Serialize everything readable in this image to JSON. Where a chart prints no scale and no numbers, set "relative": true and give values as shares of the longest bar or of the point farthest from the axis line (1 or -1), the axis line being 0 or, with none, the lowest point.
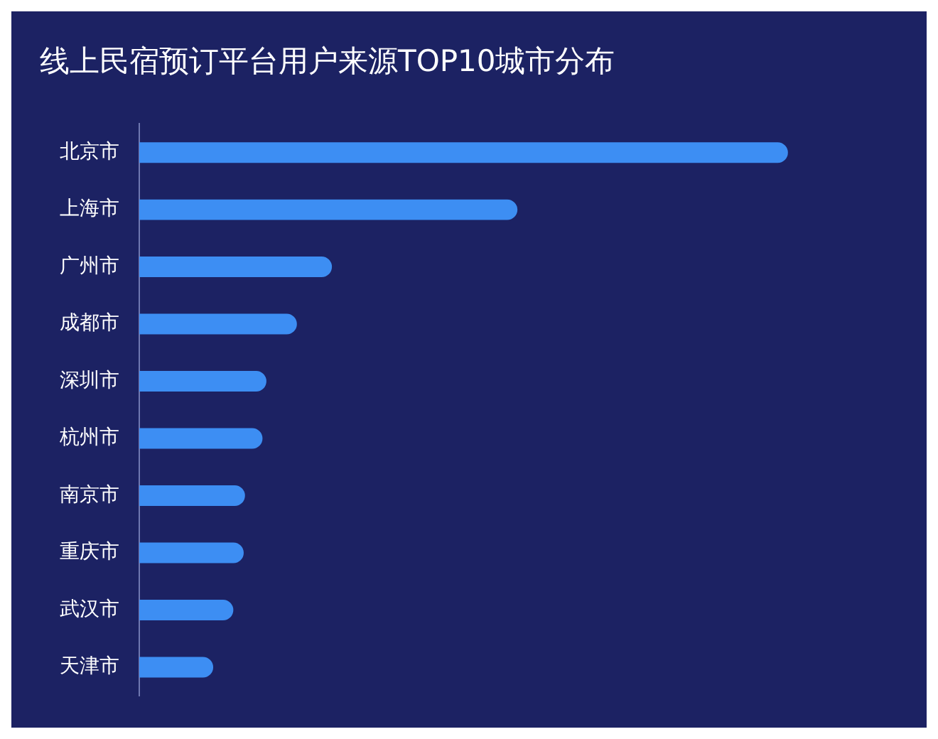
{
  "chart_data": {
    "type": "bar",
    "orientation": "horizontal",
    "relative": true,
    "title": "线上民宿预订平台用户来源TOP10城市分布",
    "categories": [
      "北京市",
      "上海市",
      "广州市",
      "成都市",
      "深圳市",
      "杭州市",
      "南京市",
      "重庆市",
      "武汉市",
      "天津市"
    ],
    "values": [
      1,
      0.583,
      0.297,
      0.243,
      0.196,
      0.19,
      0.163,
      0.161,
      0.145,
      0.114
    ],
    "color": "#3d8ef3"
  }
}
